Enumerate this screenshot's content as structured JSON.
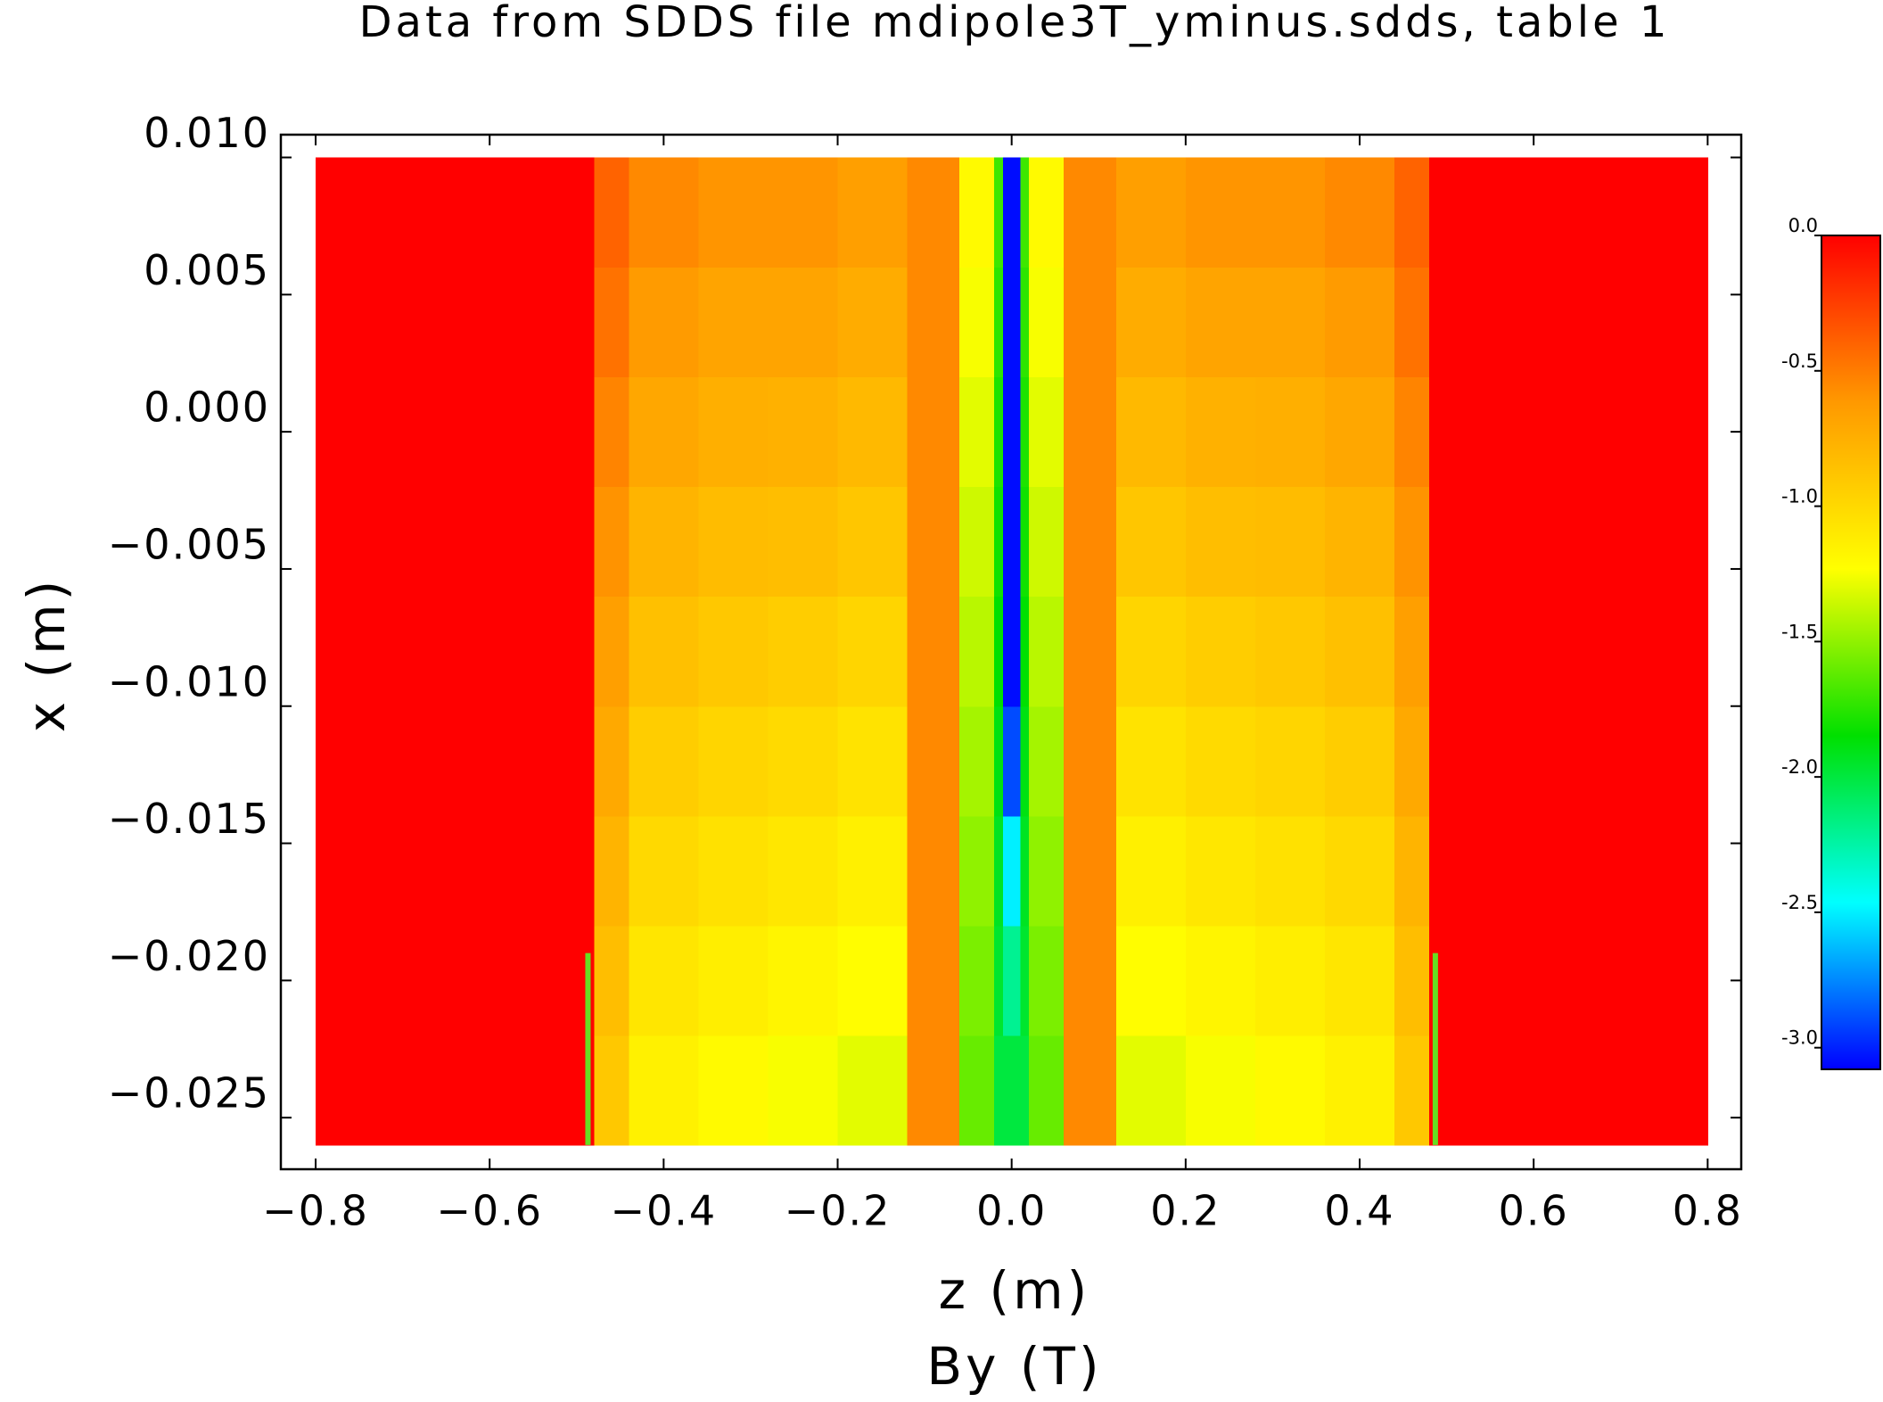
{
  "chart_data": {
    "type": "heatmap",
    "title": "Data from SDDS file mdipole3T_yminus.sdds, table 1",
    "x_label": "z (m)",
    "y_label": "x (m)",
    "colorbar_label": "By (T)",
    "x_bins": [
      -0.8,
      -0.48,
      -0.44,
      -0.36,
      -0.28,
      -0.2,
      -0.12,
      -0.06,
      -0.02,
      -0.01,
      0.01,
      0.02,
      0.06,
      0.12,
      0.2,
      0.28,
      0.36,
      0.44,
      0.48,
      0.8
    ],
    "y_bins": [
      -0.026,
      -0.022,
      -0.018,
      -0.014,
      -0.01,
      -0.006,
      -0.002,
      0.002,
      0.006,
      0.01
    ],
    "values": [
      [
        0,
        -0.9,
        -1.15,
        -1.2,
        -1.25,
        -1.3,
        -0.55,
        -1.6,
        -2.0,
        -2.0,
        -2.0,
        -1.6,
        -0.55,
        -1.3,
        -1.25,
        -1.2,
        -1.15,
        -0.9,
        0
      ],
      [
        0,
        -0.84,
        -1.08,
        -1.13,
        -1.17,
        -1.22,
        -0.55,
        -1.55,
        -1.96,
        -2.2,
        -1.96,
        -1.55,
        -0.55,
        -1.22,
        -1.17,
        -1.13,
        -1.08,
        -0.84,
        0
      ],
      [
        0,
        -0.78,
        -1.0,
        -1.05,
        -1.09,
        -1.14,
        -0.55,
        -1.5,
        -1.93,
        -2.5,
        -1.93,
        -1.5,
        -0.55,
        -1.14,
        -1.09,
        -1.05,
        -1.0,
        -0.78,
        0
      ],
      [
        0,
        -0.71,
        -0.93,
        -0.98,
        -1.01,
        -1.06,
        -0.55,
        -1.45,
        -1.89,
        -2.9,
        -1.89,
        -1.45,
        -0.55,
        -1.06,
        -1.01,
        -0.98,
        -0.93,
        -0.71,
        0
      ],
      [
        0,
        -0.65,
        -0.85,
        -0.9,
        -0.93,
        -0.98,
        -0.55,
        -1.4,
        -1.85,
        -3.05,
        -1.85,
        -1.4,
        -0.55,
        -0.98,
        -0.93,
        -0.9,
        -0.85,
        -0.65,
        0
      ],
      [
        0,
        -0.59,
        -0.78,
        -0.83,
        -0.84,
        -0.89,
        -0.55,
        -1.35,
        -1.81,
        -3.05,
        -1.81,
        -1.35,
        -0.55,
        -0.89,
        -0.84,
        -0.83,
        -0.78,
        -0.59,
        0
      ],
      [
        0,
        -0.53,
        -0.7,
        -0.75,
        -0.76,
        -0.81,
        -0.55,
        -1.3,
        -1.78,
        -3.05,
        -1.78,
        -1.3,
        -0.55,
        -0.81,
        -0.76,
        -0.75,
        -0.7,
        -0.53,
        0
      ],
      [
        0,
        -0.46,
        -0.63,
        -0.68,
        -0.68,
        -0.73,
        -0.55,
        -1.25,
        -1.74,
        -3.05,
        -1.74,
        -1.25,
        -0.55,
        -0.73,
        -0.68,
        -0.68,
        -0.63,
        -0.46,
        0
      ],
      [
        0,
        -0.4,
        -0.55,
        -0.6,
        -0.6,
        -0.65,
        -0.55,
        -1.2,
        -1.7,
        -3.05,
        -1.7,
        -1.2,
        -0.55,
        -0.65,
        -0.6,
        -0.6,
        -0.55,
        -0.4,
        0
      ]
    ],
    "colormap": [
      "#0000ff",
      "#00ffff",
      "#00e000",
      "#ffff00",
      "#ff9900",
      "#ff0000"
    ],
    "clim": [
      -3.08,
      0
    ],
    "cticks": [
      {
        "value": 0,
        "label": "0.0"
      },
      -0.5,
      {
        "value": -1,
        "label": "-1.0"
      },
      -1.5,
      {
        "value": -2,
        "label": "-2.0"
      },
      -2.5,
      {
        "value": -3,
        "label": "-3.0"
      }
    ],
    "markers": [
      {
        "x": -0.487,
        "y": [
          -0.026,
          -0.019
        ],
        "color": "#66dd22"
      },
      {
        "x": 0.487,
        "y": [
          -0.026,
          -0.019
        ],
        "color": "#66dd22"
      }
    ],
    "xlim": [
      -0.84,
      0.8386
    ],
    "ylim": [
      -0.02688,
      0.01083
    ],
    "xticks": [
      {
        "value": -0.8,
        "label": "−0.8"
      },
      {
        "value": -0.6,
        "label": "−0.6"
      },
      {
        "value": -0.4,
        "label": "−0.4"
      },
      {
        "value": -0.2,
        "label": "−0.2"
      },
      {
        "value": 0,
        "label": "0.0"
      },
      0.2,
      0.4,
      0.6,
      0.8
    ],
    "yticks": [
      {
        "value": 0.01,
        "label": "0.010"
      },
      {
        "value": 0.005,
        "label": "0.005"
      },
      {
        "value": 0,
        "label": "0.000"
      },
      {
        "value": -0.005,
        "label": "−0.005"
      },
      {
        "value": -0.01,
        "label": "−0.010"
      },
      {
        "value": -0.015,
        "label": "−0.015"
      },
      {
        "value": -0.02,
        "label": "−0.020"
      },
      {
        "value": -0.025,
        "label": "−0.025"
      }
    ]
  }
}
